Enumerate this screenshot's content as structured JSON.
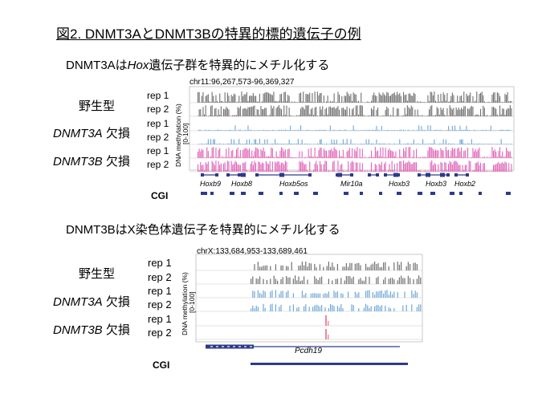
{
  "figure_title": "図2. DNMT3AとDNMT3Bの特異的標的遺伝子の例",
  "panel1": {
    "heading_pre": "DNMT3Aは",
    "heading_gene": "Hox",
    "heading_post": "遺伝子群を特異的にメチル化する",
    "coordinates": "chr11:96,267,573-96,369,327",
    "y_axis_label": "DNA methylation (%)",
    "y_axis_range": "[0-100]",
    "conditions": [
      {
        "gene": "",
        "label": "野生型"
      },
      {
        "gene": "DNMT3A",
        "label": " 欠損"
      },
      {
        "gene": "DNMT3B",
        "label": " 欠損"
      }
    ],
    "rep_labels": [
      "rep 1",
      "rep 2",
      "rep 1",
      "rep 2",
      "rep 1",
      "rep 2"
    ],
    "track_colors": [
      "#707070",
      "#707070",
      "#6fa8d8",
      "#6fa8d8",
      "#e066b8",
      "#e066b8"
    ],
    "genes": [
      "Hoxb9",
      "Hoxb8",
      "Hoxb5os",
      "Mir10a",
      "Hoxb3",
      "Hoxb3",
      "Hoxb2"
    ],
    "cgi_label": "CGI"
  },
  "panel2": {
    "heading": "DNMT3BはX染色体遺伝子を特異的にメチル化する",
    "coordinates": "chrX:133,684,953-133,689,461",
    "y_axis_label": "DNA methylation (%)",
    "y_axis_range": "[0-100]",
    "conditions": [
      {
        "gene": "",
        "label": "野生型"
      },
      {
        "gene": "DNMT3A",
        "label": " 欠損"
      },
      {
        "gene": "DNMT3B",
        "label": " 欠損"
      }
    ],
    "rep_labels": [
      "rep 1",
      "rep 2",
      "rep 1",
      "rep 2",
      "rep 1",
      "rep 2"
    ],
    "track_colors": [
      "#707070",
      "#707070",
      "#6fa8d8",
      "#6fa8d8",
      "#e88a9a",
      "#e88a9a"
    ],
    "gene": "Pcdh19",
    "cgi_label": "CGI"
  }
}
